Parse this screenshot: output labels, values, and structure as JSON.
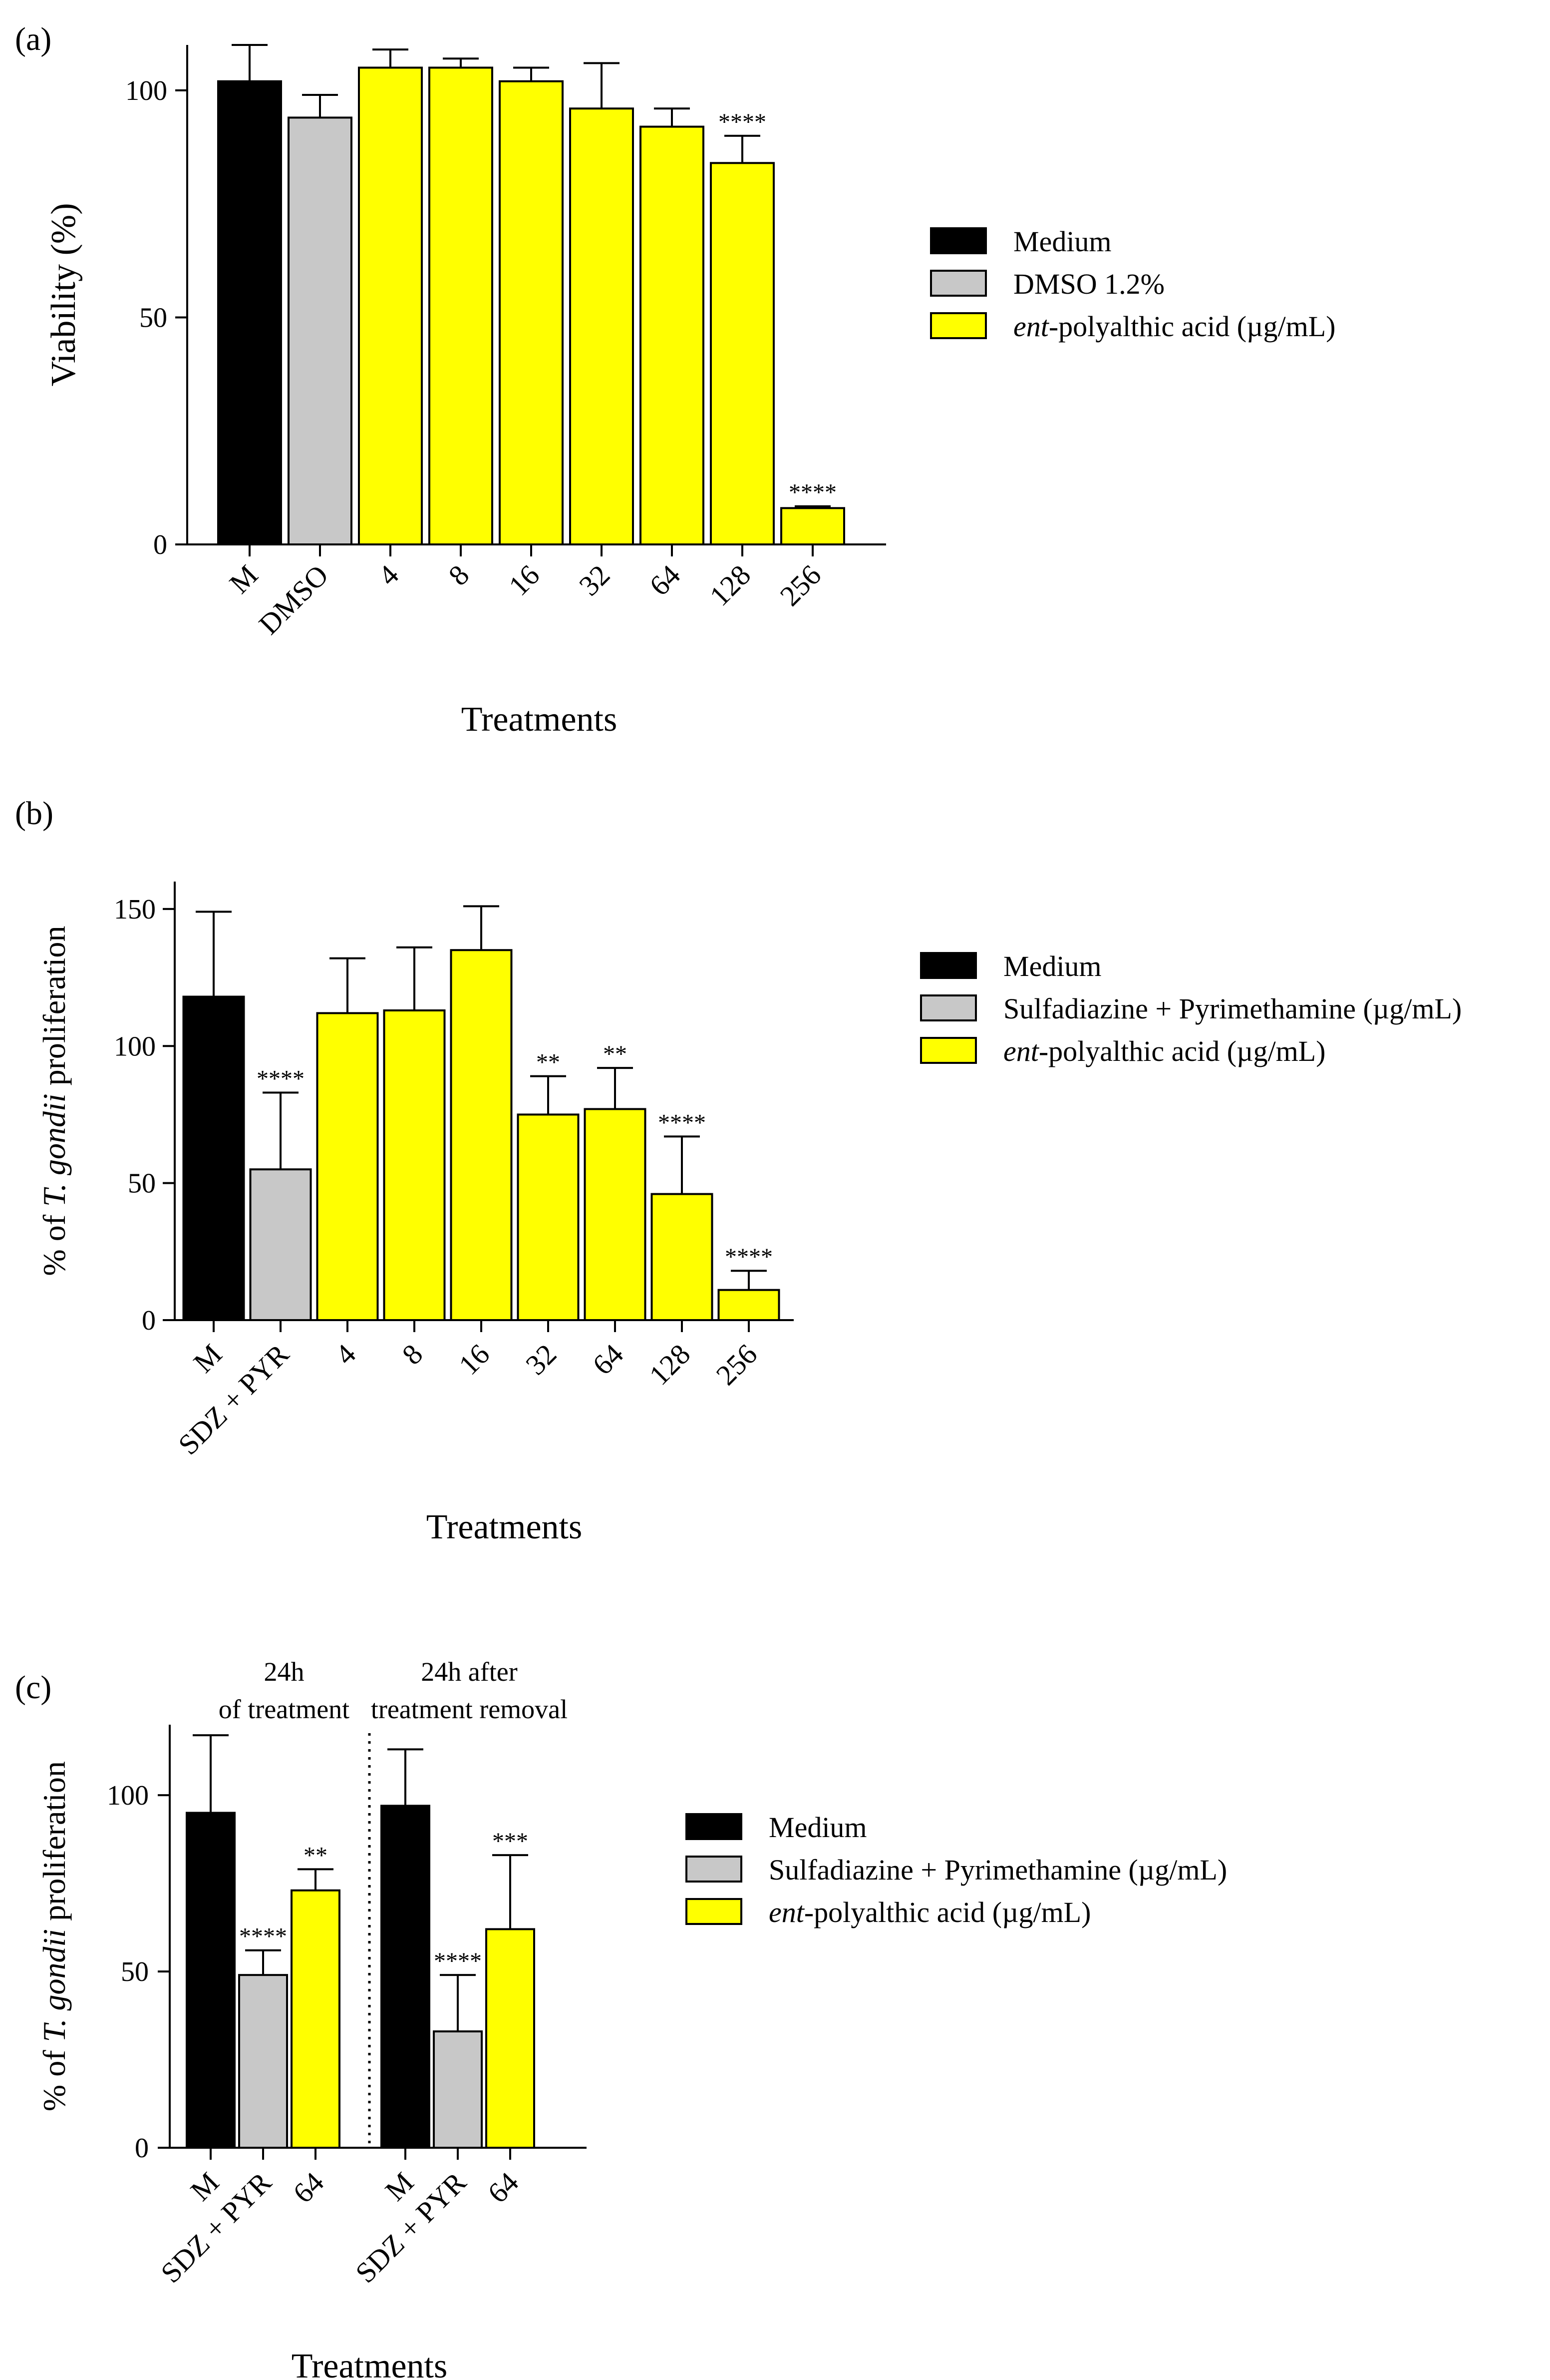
{
  "colors": {
    "medium": "#000000",
    "gray": "#c8c8c8",
    "yellow": "#ffff00"
  },
  "chart_data": [
    {
      "panel_label": "(a)",
      "type": "bar",
      "ylabel": "Viability (%)",
      "xlabel": "Treatments",
      "ylim": [
        0,
        110
      ],
      "yticks": [
        "0",
        "50",
        "100"
      ],
      "categories": [
        "M",
        "DMSO",
        "4",
        "8",
        "16",
        "32",
        "64",
        "128",
        "256"
      ],
      "values": [
        102,
        94,
        105,
        105,
        102,
        96,
        92,
        84,
        8
      ],
      "errors": [
        8,
        5,
        4,
        2,
        3,
        10,
        4,
        6,
        0.4
      ],
      "groups": [
        "medium",
        "gray",
        "yellow",
        "yellow",
        "yellow",
        "yellow",
        "yellow",
        "yellow",
        "yellow"
      ],
      "significance": [
        "",
        "",
        "",
        "",
        "",
        "",
        "",
        "****",
        "****"
      ],
      "legend": [
        {
          "prefix": "",
          "text": "Medium",
          "group": "medium"
        },
        {
          "prefix": "",
          "text": "DMSO 1.2%",
          "group": "gray"
        },
        {
          "prefix": "ent",
          "text": "-polyalthic acid (µg/mL)",
          "group": "yellow"
        }
      ]
    },
    {
      "panel_label": "(b)",
      "type": "bar",
      "ylabel_prefix": "% of ",
      "ylabel_italic": "T. gondii",
      "ylabel_suffix": " proliferation",
      "xlabel": "Treatments",
      "ylim": [
        0,
        160
      ],
      "yticks": [
        "0",
        "50",
        "100",
        "150"
      ],
      "categories": [
        "M",
        "SDZ + PYR",
        "4",
        "8",
        "16",
        "32",
        "64",
        "128",
        "256"
      ],
      "values": [
        118,
        55,
        112,
        113,
        135,
        75,
        77,
        46,
        11
      ],
      "errors": [
        31,
        28,
        20,
        23,
        16,
        14,
        15,
        21,
        7
      ],
      "groups": [
        "medium",
        "gray",
        "yellow",
        "yellow",
        "yellow",
        "yellow",
        "yellow",
        "yellow",
        "yellow"
      ],
      "significance": [
        "",
        "****",
        "",
        "",
        "",
        "**",
        "**",
        "****",
        "****"
      ],
      "legend": [
        {
          "prefix": "",
          "text": "Medium",
          "group": "medium"
        },
        {
          "prefix": "",
          "text": "Sulfadiazine + Pyrimethamine (µg/mL)",
          "group": "gray"
        },
        {
          "prefix": "ent",
          "text": "-polyalthic acid (µg/mL)",
          "group": "yellow"
        }
      ]
    },
    {
      "panel_label": "(c)",
      "type": "bar",
      "ylabel_prefix": "% of ",
      "ylabel_italic": "T. gondii",
      "ylabel_suffix": " proliferation",
      "xlabel": "Treatments",
      "ylim": [
        0,
        120
      ],
      "yticks": [
        "0",
        "50",
        "100"
      ],
      "section_titles": [
        [
          "24h",
          "of treatment"
        ],
        [
          "24h after",
          "treatment removal"
        ]
      ],
      "categories": [
        "M",
        "SDZ + PYR",
        "64",
        "M",
        "SDZ + PYR",
        "64"
      ],
      "values": [
        95,
        49,
        73,
        97,
        33,
        62
      ],
      "errors": [
        22,
        7,
        6,
        16,
        16,
        21
      ],
      "groups": [
        "medium",
        "gray",
        "yellow",
        "medium",
        "gray",
        "yellow"
      ],
      "significance": [
        "",
        "****",
        "**",
        "",
        "****",
        "***"
      ],
      "legend": [
        {
          "prefix": "",
          "text": "Medium",
          "group": "medium"
        },
        {
          "prefix": "",
          "text": "Sulfadiazine + Pyrimethamine (µg/mL)",
          "group": "gray"
        },
        {
          "prefix": "ent",
          "text": "-polyalthic acid (µg/mL)",
          "group": "yellow"
        }
      ]
    }
  ]
}
